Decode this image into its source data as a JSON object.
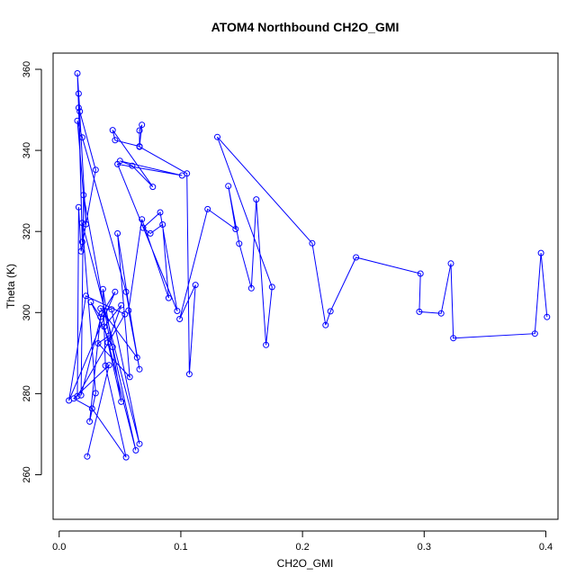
{
  "chart_data": {
    "type": "line",
    "title": "ATOM4 Northbound CH2O_GMI",
    "xlabel": "CH2O_GMI",
    "ylabel": "Theta (K)",
    "xlim": [
      -0.005,
      0.41
    ],
    "ylim": [
      249,
      364
    ],
    "xticks": [
      0.0,
      0.1,
      0.2,
      0.3,
      0.4
    ],
    "xtick_labels": [
      "0.0",
      "0.1",
      "0.2",
      "0.3",
      "0.4"
    ],
    "yticks": [
      260,
      280,
      300,
      320,
      340,
      360
    ],
    "ytick_labels": [
      "260",
      "280",
      "300",
      "320",
      "340",
      "360"
    ],
    "grid": false,
    "series": [
      {
        "color": "#0000ff",
        "marker": "open-circle",
        "points": [
          [
            0.023,
            264.5
          ],
          [
            0.041,
            287.0
          ],
          [
            0.012,
            278.8
          ],
          [
            0.027,
            276.3
          ],
          [
            0.055,
            264.3
          ],
          [
            0.038,
            286.9
          ],
          [
            0.036,
            305.8
          ],
          [
            0.051,
            278.0
          ],
          [
            0.04,
            292.6
          ],
          [
            0.051,
            301.8
          ],
          [
            0.037,
            296.5
          ],
          [
            0.063,
            266.0
          ],
          [
            0.044,
            291.5
          ],
          [
            0.026,
            302.6
          ],
          [
            0.034,
            298.9
          ],
          [
            0.025,
            273.1
          ],
          [
            0.03,
            280.1
          ],
          [
            0.019,
            322.1
          ],
          [
            0.066,
            267.6
          ],
          [
            0.043,
            300.8
          ],
          [
            0.034,
            301.0
          ],
          [
            0.064,
            288.9
          ],
          [
            0.048,
            319.5
          ],
          [
            0.058,
            284.1
          ],
          [
            0.032,
            292.4
          ],
          [
            0.041,
            294.3
          ],
          [
            0.02,
            329.0
          ],
          [
            0.018,
            279.6
          ],
          [
            0.035,
            299.7
          ],
          [
            0.046,
            305.1
          ],
          [
            0.008,
            278.3
          ],
          [
            0.022,
            304.1
          ],
          [
            0.054,
            299.6
          ],
          [
            0.015,
            279.4
          ],
          [
            0.016,
            326.0
          ],
          [
            0.018,
            315.1
          ],
          [
            0.03,
            335.2
          ],
          [
            0.017,
            349.6
          ],
          [
            0.015,
            359.0
          ],
          [
            0.016,
            350.5
          ],
          [
            0.019,
            317.4
          ],
          [
            0.016,
            354.0
          ],
          [
            0.022,
            321.8
          ],
          [
            0.015,
            347.3
          ],
          [
            0.019,
            343.2
          ],
          [
            0.055,
            305.1
          ],
          [
            0.066,
            286.0
          ],
          [
            0.057,
            300.5
          ],
          [
            0.068,
            323.0
          ],
          [
            0.09,
            303.6
          ],
          [
            0.085,
            321.7
          ],
          [
            0.075,
            319.5
          ],
          [
            0.069,
            320.9
          ],
          [
            0.083,
            324.7
          ],
          [
            0.097,
            300.4
          ],
          [
            0.048,
            336.6
          ],
          [
            0.101,
            333.8
          ],
          [
            0.05,
            337.4
          ],
          [
            0.06,
            336.2
          ],
          [
            0.077,
            331.0
          ],
          [
            0.044,
            345.0
          ],
          [
            0.046,
            342.5
          ],
          [
            0.066,
            341.0
          ],
          [
            0.068,
            346.3
          ],
          [
            0.066,
            344.9
          ],
          [
            0.066,
            340.9
          ],
          [
            0.105,
            334.3
          ],
          [
            0.107,
            284.8
          ],
          [
            0.112,
            306.8
          ],
          [
            0.099,
            298.4
          ],
          [
            0.122,
            325.5
          ],
          [
            0.145,
            320.6
          ],
          [
            0.139,
            331.2
          ],
          [
            0.148,
            317.0
          ],
          [
            0.158,
            306.0
          ],
          [
            0.162,
            327.9
          ],
          [
            0.17,
            292.0
          ],
          [
            0.175,
            306.3
          ],
          [
            0.13,
            343.3
          ],
          [
            0.208,
            317.1
          ],
          [
            0.219,
            296.9
          ],
          [
            0.223,
            300.3
          ],
          [
            0.244,
            313.6
          ],
          [
            0.297,
            309.6
          ],
          [
            0.296,
            300.2
          ],
          [
            0.314,
            299.8
          ],
          [
            0.322,
            312.1
          ],
          [
            0.324,
            293.7
          ],
          [
            0.391,
            294.8
          ],
          [
            0.396,
            314.7
          ],
          [
            0.401,
            298.9
          ]
        ]
      }
    ]
  }
}
